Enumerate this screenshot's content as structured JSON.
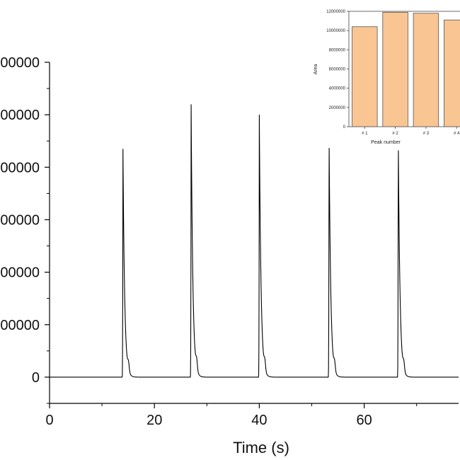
{
  "chart_data": [
    {
      "type": "line",
      "title": "",
      "xlabel": "Time (s)",
      "ylabel": "",
      "xlim": [
        0,
        78
      ],
      "ylim": [
        -5000000,
        60000000
      ],
      "x_ticks": [
        0,
        20,
        40,
        60
      ],
      "x_tick_labels": [
        "0",
        "20",
        "40",
        "60"
      ],
      "y_ticks": [
        0,
        10000000,
        20000000,
        30000000,
        40000000,
        50000000,
        60000000
      ],
      "y_tick_labels": [
        "0",
        "000000",
        "000000",
        "000000",
        "000000",
        "000000",
        "000000"
      ],
      "series": [
        {
          "peaks": [
            {
              "time": 14.0,
              "height": 43500000
            },
            {
              "time": 27.0,
              "height": 52000000
            },
            {
              "time": 40.0,
              "height": 50000000
            },
            {
              "time": 53.3,
              "height": 46500000
            },
            {
              "time": 66.5,
              "height": 46000000
            }
          ],
          "baseline": 0,
          "color": "#000000"
        }
      ]
    },
    {
      "type": "bar",
      "title": "",
      "xlabel": "Peak number",
      "ylabel": "Area",
      "categories": [
        "# 1",
        "# 2",
        "# 3",
        "# 4"
      ],
      "values": [
        10400000,
        11900000,
        11800000,
        11100000
      ],
      "ylim": [
        0,
        12000000
      ],
      "y_ticks": [
        0,
        2000000,
        4000000,
        6000000,
        8000000,
        10000000,
        12000000
      ],
      "y_tick_labels": [
        "0",
        "2000000",
        "4000000",
        "6000000",
        "8000000",
        "10000000",
        "12000000"
      ],
      "bar_color": "#f9c592",
      "bar_edge_color": "#555555"
    }
  ]
}
